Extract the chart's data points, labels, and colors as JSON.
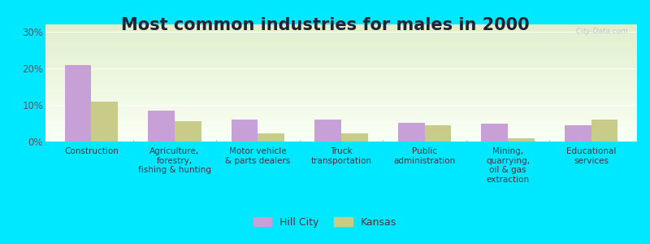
{
  "title": "Most common industries for males in 2000",
  "categories": [
    "Construction",
    "Agriculture,\nforestry,\nfishing & hunting",
    "Motor vehicle\n& parts dealers",
    "Truck\ntransportation",
    "Public\nadministration",
    "Mining,\nquarrying,\noil & gas\nextraction",
    "Educational\nservices"
  ],
  "hill_city_values": [
    21,
    8.5,
    6,
    6,
    5.2,
    5.0,
    4.5
  ],
  "kansas_values": [
    11,
    5.5,
    2.2,
    2.2,
    4.5,
    1.0,
    6.0
  ],
  "hill_city_color": "#c8a0d8",
  "kansas_color": "#c8cc88",
  "background_top": "#e0eecc",
  "background_bottom": "#fafff5",
  "outer_bg": "#00e8ff",
  "ylim": [
    0,
    32
  ],
  "yticks": [
    0,
    10,
    20,
    30
  ],
  "ytick_labels": [
    "0%",
    "10%",
    "20%",
    "30%"
  ],
  "legend_labels": [
    "Hill City",
    "Kansas"
  ],
  "title_fontsize": 15,
  "label_fontsize": 7.5,
  "bar_width": 0.32,
  "watermark": " City-Data.com"
}
